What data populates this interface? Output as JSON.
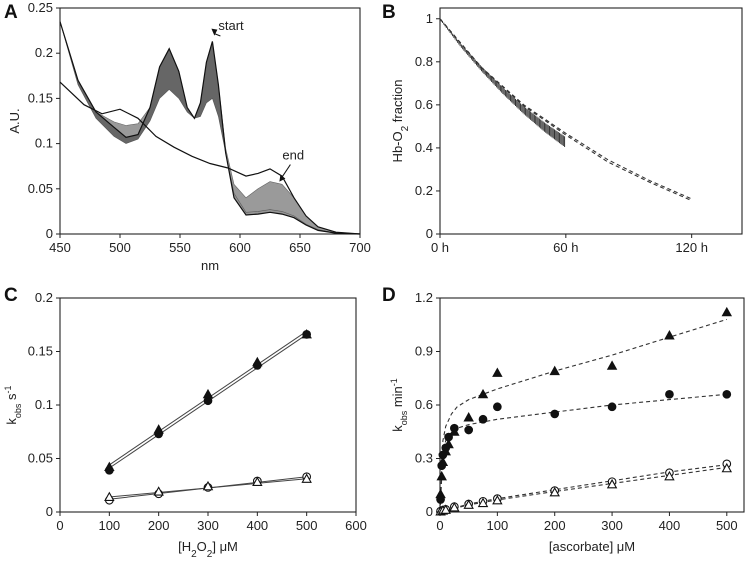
{
  "chart_data": [
    {
      "id": "A",
      "panel_label": "A",
      "type": "line",
      "title": "",
      "xlabel": "nm",
      "ylabel": "A.U.",
      "xlim": [
        450,
        700
      ],
      "ylim": [
        0,
        0.25
      ],
      "xticks": [
        450,
        500,
        550,
        600,
        650,
        700
      ],
      "yticks": [
        0,
        0.05,
        0.1,
        0.15,
        0.2,
        0.25
      ],
      "xtick_labels": [
        "450",
        "500",
        "550",
        "600",
        "650",
        "700"
      ],
      "ytick_labels": [
        "0",
        "0.05",
        "0.1",
        "0.15",
        "0.2",
        "0.25"
      ],
      "annotations": [
        {
          "text": "start",
          "x": 577,
          "y": 0.215
        },
        {
          "text": "end",
          "x": 632,
          "y": 0.058
        }
      ],
      "series": [
        {
          "name": "start",
          "x": [
            450,
            465,
            480,
            495,
            505,
            515,
            525,
            533,
            541,
            549,
            556,
            562,
            567,
            572,
            577,
            582,
            588,
            595,
            605,
            615,
            625,
            635,
            645,
            655,
            665,
            680,
            700
          ],
          "y": [
            0.235,
            0.17,
            0.135,
            0.118,
            0.107,
            0.11,
            0.14,
            0.185,
            0.205,
            0.18,
            0.14,
            0.128,
            0.145,
            0.19,
            0.213,
            0.165,
            0.09,
            0.04,
            0.021,
            0.022,
            0.024,
            0.022,
            0.018,
            0.01,
            0.004,
            0.001,
            0
          ]
        },
        {
          "name": "end",
          "x": [
            450,
            470,
            485,
            500,
            515,
            530,
            545,
            560,
            575,
            590,
            605,
            615,
            625,
            635,
            645,
            655,
            665,
            680,
            700
          ],
          "y": [
            0.168,
            0.143,
            0.133,
            0.138,
            0.128,
            0.108,
            0.096,
            0.086,
            0.078,
            0.073,
            0.064,
            0.067,
            0.072,
            0.064,
            0.04,
            0.02,
            0.008,
            0.002,
            0
          ]
        },
        {
          "name": "intermediate-band-outer",
          "x": [
            450,
            465,
            480,
            495,
            505,
            515,
            525,
            533,
            541,
            549,
            556,
            562,
            567,
            572,
            577,
            582,
            588,
            595,
            605,
            615,
            625,
            635,
            645,
            655,
            665,
            680,
            700
          ],
          "y": [
            0.235,
            0.17,
            0.135,
            0.124,
            0.12,
            0.122,
            0.14,
            0.185,
            0.205,
            0.18,
            0.14,
            0.128,
            0.145,
            0.19,
            0.213,
            0.165,
            0.095,
            0.055,
            0.04,
            0.05,
            0.058,
            0.055,
            0.04,
            0.02,
            0.008,
            0.002,
            0
          ]
        },
        {
          "name": "intermediate-band-inner",
          "x": [
            450,
            465,
            480,
            495,
            505,
            515,
            525,
            533,
            541,
            549,
            556,
            562,
            567,
            572,
            577,
            582,
            588,
            595,
            605,
            615,
            625,
            635,
            645,
            655,
            665,
            680,
            700
          ],
          "y": [
            0.235,
            0.165,
            0.128,
            0.108,
            0.1,
            0.105,
            0.125,
            0.15,
            0.16,
            0.15,
            0.135,
            0.128,
            0.13,
            0.145,
            0.15,
            0.13,
            0.09,
            0.045,
            0.024,
            0.025,
            0.027,
            0.025,
            0.02,
            0.011,
            0.005,
            0.001,
            0
          ]
        }
      ]
    },
    {
      "id": "B",
      "panel_label": "B",
      "type": "line",
      "title": "",
      "xlabel": "",
      "ylabel": "Hb-O2 fraction",
      "ylabel_parts": {
        "pre": "Hb-O",
        "sub": "2",
        "post": " fraction"
      },
      "xlim": [
        0,
        144
      ],
      "ylim": [
        0,
        1.05
      ],
      "xticks": [
        0,
        60,
        120
      ],
      "yticks": [
        0,
        0.2,
        0.4,
        0.6,
        0.8,
        1
      ],
      "xtick_labels": [
        "0 h",
        "60 h",
        "120 h"
      ],
      "ytick_labels": [
        "0",
        "0.2",
        "0.4",
        "0.6",
        "0.8",
        "1"
      ],
      "series": [
        {
          "name": "measured",
          "style": "dense-markers",
          "x": [
            0,
            10,
            20,
            30,
            40,
            50,
            60
          ],
          "y": [
            1,
            0.875,
            0.765,
            0.665,
            0.575,
            0.495,
            0.425
          ]
        },
        {
          "name": "fit-1",
          "style": "dashed",
          "x": [
            0,
            20,
            40,
            60,
            80,
            100,
            120
          ],
          "y": [
            1,
            0.77,
            0.595,
            0.46,
            0.335,
            0.24,
            0.155
          ]
        },
        {
          "name": "fit-2",
          "style": "dashed",
          "x": [
            0,
            20,
            40,
            60,
            80,
            100,
            120
          ],
          "y": [
            1,
            0.772,
            0.6,
            0.468,
            0.345,
            0.248,
            0.163
          ]
        }
      ]
    },
    {
      "id": "C",
      "panel_label": "C",
      "type": "scatter",
      "title": "",
      "xlabel": "[H2O2] μM",
      "xlabel_parts": {
        "pre": "[H",
        "sub1": "2",
        "mid": "O",
        "sub2": "2",
        "post": "] μM"
      },
      "ylabel": "kobs s-1",
      "ylabel_parts": {
        "base": "k",
        "sub": "obs",
        "mid": " s",
        "sup": "-1"
      },
      "xlim": [
        0,
        600
      ],
      "ylim": [
        0,
        0.2
      ],
      "xticks": [
        0,
        100,
        200,
        300,
        400,
        500,
        600
      ],
      "yticks": [
        0,
        0.05,
        0.1,
        0.15,
        0.2
      ],
      "xtick_labels": [
        "0",
        "100",
        "200",
        "300",
        "400",
        "500",
        "600"
      ],
      "ytick_labels": [
        "0",
        "0.05",
        "0.1",
        "0.15",
        "0.2"
      ],
      "series": [
        {
          "name": "filled-circles",
          "marker": "circle",
          "filled": true,
          "x": [
            100,
            200,
            300,
            400,
            500
          ],
          "y": [
            0.039,
            0.073,
            0.104,
            0.137,
            0.166
          ]
        },
        {
          "name": "filled-triangles",
          "marker": "triangle",
          "filled": true,
          "x": [
            100,
            200,
            300,
            400,
            500
          ],
          "y": [
            0.042,
            0.077,
            0.11,
            0.14,
            0.166
          ]
        },
        {
          "name": "open-circles",
          "marker": "circle",
          "filled": false,
          "x": [
            100,
            200,
            300,
            400,
            500
          ],
          "y": [
            0.011,
            0.017,
            0.023,
            0.029,
            0.033
          ]
        },
        {
          "name": "open-triangles",
          "marker": "triangle",
          "filled": false,
          "x": [
            100,
            200,
            300,
            400,
            500
          ],
          "y": [
            0.014,
            0.019,
            0.024,
            0.028,
            0.031
          ]
        }
      ],
      "fit_lines": [
        {
          "x": [
            100,
            500
          ],
          "y": [
            0.041,
            0.166
          ]
        },
        {
          "x": [
            100,
            500
          ],
          "y": [
            0.044,
            0.169
          ]
        },
        {
          "x": [
            100,
            500
          ],
          "y": [
            0.012,
            0.033
          ]
        },
        {
          "x": [
            100,
            500
          ],
          "y": [
            0.014,
            0.031
          ]
        }
      ]
    },
    {
      "id": "D",
      "panel_label": "D",
      "type": "scatter",
      "title": "",
      "xlabel": "[ascorbate] μM",
      "ylabel": "kobs min-1",
      "ylabel_parts": {
        "base": "k",
        "sub": "obs",
        "mid": " min",
        "sup": "-1"
      },
      "xlim": [
        0,
        530
      ],
      "ylim": [
        0,
        1.2
      ],
      "xticks": [
        0,
        100,
        200,
        300,
        400,
        500
      ],
      "yticks": [
        0,
        0.3,
        0.6,
        0.9,
        1.2
      ],
      "xtick_labels": [
        "0",
        "100",
        "200",
        "300",
        "400",
        "500"
      ],
      "ytick_labels": [
        "0",
        "0.3",
        "0.6",
        "0.9",
        "1.2"
      ],
      "series": [
        {
          "name": "filled-triangles",
          "marker": "triangle",
          "filled": true,
          "x": [
            1,
            3,
            5,
            10,
            15,
            25,
            50,
            75,
            100,
            200,
            300,
            400,
            500
          ],
          "y": [
            0.1,
            0.2,
            0.28,
            0.34,
            0.38,
            0.45,
            0.53,
            0.66,
            0.78,
            0.79,
            0.82,
            0.99,
            1.12
          ]
        },
        {
          "name": "filled-circles",
          "marker": "circle",
          "filled": true,
          "x": [
            1,
            3,
            5,
            10,
            15,
            25,
            50,
            75,
            100,
            200,
            300,
            400,
            500
          ],
          "y": [
            0.07,
            0.26,
            0.32,
            0.36,
            0.42,
            0.47,
            0.46,
            0.52,
            0.59,
            0.55,
            0.59,
            0.66,
            0.66
          ]
        },
        {
          "name": "open-circles",
          "marker": "circle",
          "filled": false,
          "x": [
            1,
            5,
            10,
            25,
            50,
            75,
            100,
            200,
            300,
            400,
            500
          ],
          "y": [
            0.005,
            0.01,
            0.015,
            0.03,
            0.045,
            0.06,
            0.075,
            0.12,
            0.17,
            0.22,
            0.27
          ]
        },
        {
          "name": "open-triangles",
          "marker": "triangle",
          "filled": false,
          "x": [
            1,
            5,
            10,
            25,
            50,
            75,
            100,
            200,
            300,
            400,
            500
          ],
          "y": [
            0.003,
            0.008,
            0.012,
            0.025,
            0.04,
            0.05,
            0.065,
            0.11,
            0.155,
            0.2,
            0.245
          ]
        }
      ],
      "fit_lines": [
        {
          "style": "dashed",
          "x": [
            0,
            5,
            10,
            20,
            30,
            50,
            100,
            200,
            300,
            400,
            500
          ],
          "y": [
            0,
            0.4,
            0.48,
            0.55,
            0.59,
            0.63,
            0.69,
            0.79,
            0.88,
            0.98,
            1.08
          ]
        },
        {
          "style": "dashed",
          "x": [
            0,
            5,
            10,
            20,
            30,
            50,
            100,
            200,
            300,
            400,
            500
          ],
          "y": [
            0,
            0.33,
            0.4,
            0.45,
            0.47,
            0.49,
            0.52,
            0.56,
            0.6,
            0.63,
            0.66
          ]
        },
        {
          "style": "dashed",
          "x": [
            0,
            50,
            100,
            200,
            300,
            400,
            500
          ],
          "y": [
            0,
            0.045,
            0.075,
            0.125,
            0.175,
            0.225,
            0.265
          ]
        },
        {
          "style": "dashed",
          "x": [
            0,
            50,
            100,
            200,
            300,
            400,
            500
          ],
          "y": [
            0,
            0.04,
            0.068,
            0.115,
            0.16,
            0.205,
            0.25
          ]
        }
      ]
    }
  ]
}
